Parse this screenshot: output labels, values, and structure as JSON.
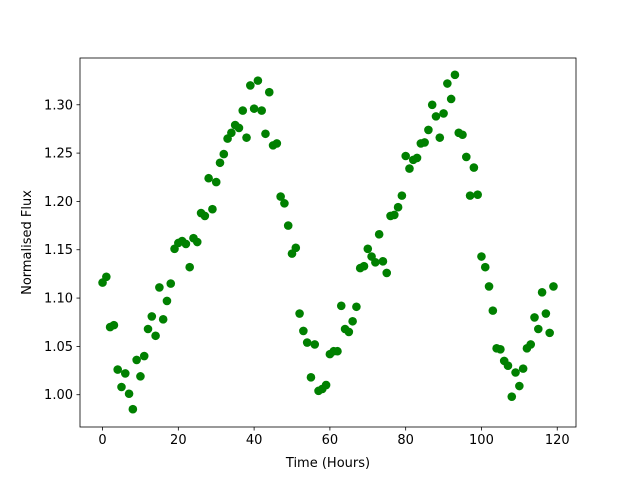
{
  "chart_data": {
    "type": "scatter",
    "x_label": "Time (Hours)",
    "y_label": "Normalised Flux",
    "color": "#008000",
    "x": [
      0,
      1,
      2,
      3,
      4,
      5,
      6,
      7,
      8,
      9,
      10,
      11,
      12,
      13,
      14,
      15,
      16,
      17,
      18,
      19,
      20,
      21,
      22,
      23,
      24,
      25,
      26,
      27,
      28,
      29,
      30,
      31,
      32,
      33,
      34,
      35,
      36,
      37,
      38,
      39,
      40,
      41,
      42,
      43,
      44,
      45,
      46,
      47,
      48,
      49,
      50,
      51,
      52,
      53,
      54,
      55,
      56,
      57,
      58,
      59,
      60,
      61,
      62,
      63,
      64,
      65,
      66,
      67,
      68,
      69,
      70,
      71,
      72,
      73,
      74,
      75,
      76,
      77,
      78,
      79,
      80,
      81,
      82,
      83,
      84,
      85,
      86,
      87,
      88,
      89,
      90,
      91,
      92,
      93,
      94,
      95,
      96,
      97,
      98,
      99,
      100,
      101,
      102,
      103,
      104,
      105,
      106,
      107,
      108,
      109,
      110,
      111,
      112,
      113,
      114,
      115,
      116,
      117,
      118,
      119
    ],
    "values": [
      1.116,
      1.122,
      1.07,
      1.072,
      1.026,
      1.008,
      1.022,
      1.001,
      0.985,
      1.036,
      1.019,
      1.04,
      1.068,
      1.081,
      1.061,
      1.111,
      1.078,
      1.097,
      1.115,
      1.151,
      1.157,
      1.159,
      1.156,
      1.132,
      1.162,
      1.158,
      1.188,
      1.185,
      1.224,
      1.192,
      1.22,
      1.24,
      1.249,
      1.265,
      1.271,
      1.279,
      1.276,
      1.294,
      1.266,
      1.32,
      1.296,
      1.325,
      1.294,
      1.27,
      1.313,
      1.258,
      1.26,
      1.205,
      1.198,
      1.175,
      1.146,
      1.152,
      1.084,
      1.066,
      1.054,
      1.018,
      1.052,
      1.004,
      1.006,
      1.01,
      1.042,
      1.045,
      1.045,
      1.092,
      1.068,
      1.065,
      1.076,
      1.091,
      1.131,
      1.133,
      1.151,
      1.143,
      1.137,
      1.166,
      1.138,
      1.126,
      1.185,
      1.186,
      1.194,
      1.206,
      1.247,
      1.234,
      1.243,
      1.245,
      1.26,
      1.261,
      1.274,
      1.3,
      1.288,
      1.266,
      1.291,
      1.322,
      1.306,
      1.331,
      1.271,
      1.269,
      1.246,
      1.206,
      1.235,
      1.207,
      1.143,
      1.132,
      1.112,
      1.087,
      1.048,
      1.047,
      1.035,
      1.03,
      0.998,
      1.023,
      1.009,
      1.027,
      1.048,
      1.052,
      1.08,
      1.068,
      1.106,
      1.084,
      1.064,
      1.112
    ],
    "xlim": [
      -5.95,
      124.95
    ],
    "ylim": [
      0.9666,
      1.3484
    ],
    "xticks": [
      0,
      20,
      40,
      60,
      80,
      100,
      120
    ],
    "yticks": [
      {
        "value": 1.0,
        "label": "1.00"
      },
      {
        "value": 1.05,
        "label": "1.05"
      },
      {
        "value": 1.1,
        "label": "1.10"
      },
      {
        "value": 1.15,
        "label": "1.15"
      },
      {
        "value": 1.2,
        "label": "1.20"
      },
      {
        "value": 1.25,
        "label": "1.25"
      },
      {
        "value": 1.3,
        "label": "1.30"
      }
    ]
  }
}
